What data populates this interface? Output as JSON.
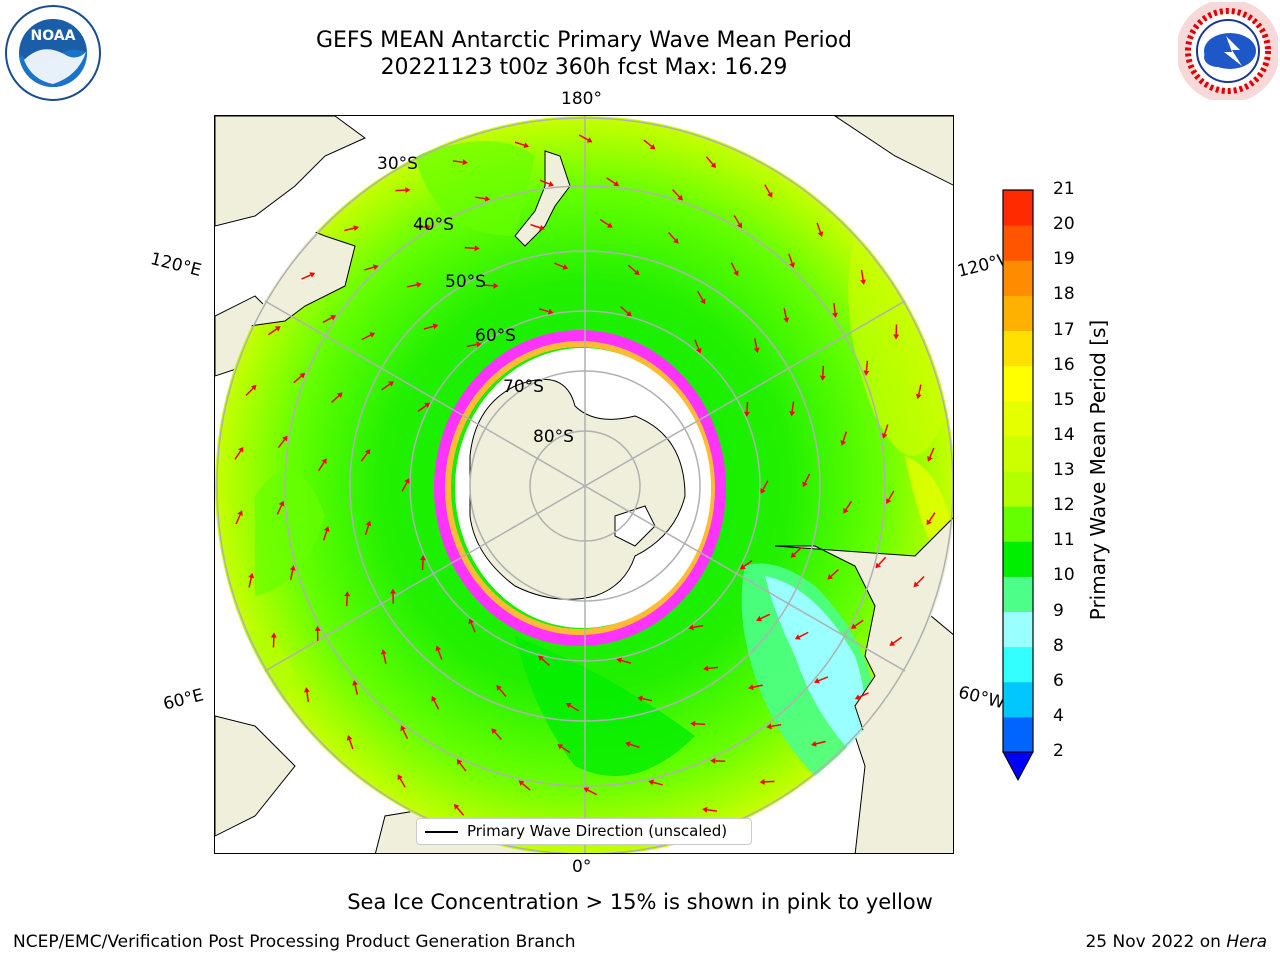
{
  "header": {
    "title_line1": "GEFS MEAN Antarctic Primary Wave Mean Period",
    "title_line2": "20221123 t00z 360h fcst   Max: 16.29"
  },
  "logos": {
    "left_icon": "noaa-logo",
    "left_text": "NOAA",
    "left_ring_text": "NATIONAL OCEANIC AND ATMOSPHERIC ADMINISTRATION · U.S. DEPARTMENT OF COMMERCE",
    "right_icon": "nws-logo",
    "right_ring_text": "NATIONAL WEATHER SERVICE"
  },
  "map": {
    "projection": "south-polar-stereographic",
    "longitude_labels": {
      "top": "180°",
      "bottom": "0°",
      "left_upper": "120°E",
      "right_upper": "120°W",
      "left_lower": "60°E",
      "right_lower": "60°W"
    },
    "latitude_labels": [
      "30°S",
      "40°S",
      "50°S",
      "60°S",
      "70°S",
      "80°S"
    ],
    "colors": {
      "land": "#efefdb",
      "gridline": "#b0b0b0",
      "arrows": "#ff0000",
      "sea_ice_low": "#ff33ff",
      "sea_ice_high": "#ffbb33"
    }
  },
  "legend": {
    "entry": "Primary Wave Direction (unscaled)"
  },
  "colorbar": {
    "label": "Primary Wave Mean Period [s]",
    "ticks": [
      "2",
      "4",
      "6",
      "8",
      "9",
      "10",
      "11",
      "12",
      "13",
      "14",
      "15",
      "16",
      "17",
      "18",
      "19",
      "20",
      "21"
    ],
    "colors": [
      "#0064ff",
      "#00c8ff",
      "#33ffff",
      "#99ffff",
      "#4dff88",
      "#00ee00",
      "#66ff00",
      "#b3ff00",
      "#ccff00",
      "#e5ff00",
      "#ffff00",
      "#ffe000",
      "#ffb000",
      "#ff8c00",
      "#ff5500",
      "#ff2a00"
    ],
    "under_color": "#0000ff"
  },
  "caption": "Sea Ice Concentration > 15% is shown in pink to yellow",
  "footer": {
    "left": "NCEP/EMC/Verification Post Processing Product Generation Branch",
    "date": "25 Nov 2022 on",
    "machine": "Hera"
  }
}
